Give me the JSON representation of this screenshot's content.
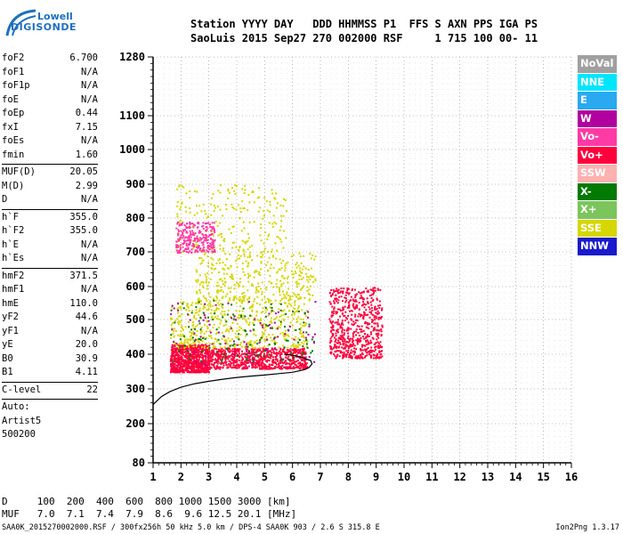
{
  "logo": {
    "line1": "Lowell",
    "line2": "DIGISONDE"
  },
  "header": {
    "line1": "Station YYYY DAY   DDD HHMMSS P1  FFS S AXN PPS IGA PS",
    "line2": "SaoLuis 2015 Sep27 270 002000 RSF     1 715 100 00- 11"
  },
  "params": {
    "g1": [
      [
        "foF2",
        "6.700"
      ],
      [
        "foF1",
        "N/A"
      ],
      [
        "foF1p",
        "N/A"
      ],
      [
        "foE",
        "N/A"
      ],
      [
        "foEp",
        "0.44"
      ],
      [
        "fxI",
        "7.15"
      ],
      [
        "foEs",
        "N/A"
      ],
      [
        "fmin",
        "1.60"
      ]
    ],
    "g2": [
      [
        "MUF(D)",
        "20.05"
      ],
      [
        "M(D)",
        "2.99"
      ],
      [
        "D",
        "N/A"
      ]
    ],
    "g3": [
      [
        "h`F",
        "355.0"
      ],
      [
        "h`F2",
        "355.0"
      ],
      [
        "h`E",
        "N/A"
      ],
      [
        "h`Es",
        "N/A"
      ]
    ],
    "g4": [
      [
        "hmF2",
        "371.5"
      ],
      [
        "hmF1",
        "N/A"
      ],
      [
        "hmE",
        "110.0"
      ],
      [
        "yF2",
        "44.6"
      ],
      [
        "yF1",
        "N/A"
      ],
      [
        "yE",
        "20.0"
      ],
      [
        "B0",
        "30.9"
      ],
      [
        "B1",
        "4.11"
      ]
    ],
    "g5": [
      [
        "C-level",
        "22"
      ]
    ],
    "auto": [
      "Auto:",
      "Artist5",
      "500200"
    ]
  },
  "legend": [
    {
      "label": "NoVal",
      "color": "#a0a0a0"
    },
    {
      "label": "NNE",
      "color": "#00e5ff"
    },
    {
      "label": "E",
      "color": "#2aa9f0"
    },
    {
      "label": "W",
      "color": "#b0009e"
    },
    {
      "label": "Vo-",
      "color": "#ff3aa5"
    },
    {
      "label": "Vo+",
      "color": "#ff003c"
    },
    {
      "label": "SSW",
      "color": "#ffb0b0"
    },
    {
      "label": "X-",
      "color": "#007a00"
    },
    {
      "label": "X+",
      "color": "#7cc45c"
    },
    {
      "label": "SSE",
      "color": "#d6d600"
    },
    {
      "label": "NNW",
      "color": "#1a1acc"
    }
  ],
  "bottom": {
    "line1": "D     100  200  400  600  800 1000 1500 3000 [km]",
    "line2": "MUF   7.0  7.1  7.4  7.9  8.6  9.6 12.5 20.1 [MHz]"
  },
  "footer": {
    "left": "SAA0K_2015270002000.RSF / 300fx256h 50 kHz 5.0 km / DPS-4 SAA0K 903 / 2.6 S 315.8 E",
    "right": "Ion2Png 1.3.17"
  },
  "chart_data": {
    "type": "scatter",
    "x_ticks": [
      1,
      2,
      3,
      4,
      5,
      6,
      7,
      8,
      9,
      10,
      11,
      12,
      13,
      14,
      15,
      16
    ],
    "y_ticks": [
      80,
      200,
      300,
      400,
      500,
      600,
      700,
      800,
      900,
      1000,
      1100,
      1280
    ],
    "xlim": [
      1,
      16
    ],
    "ylim": [
      80,
      1280
    ],
    "grid": true,
    "clusters": [
      {
        "x": [
          1.6,
          3.0
        ],
        "y": [
          350,
          430
        ],
        "color": "#ff003c",
        "density": 0.9
      },
      {
        "x": [
          3.0,
          6.5
        ],
        "y": [
          360,
          420
        ],
        "color": "#ff003c",
        "density": 0.8
      },
      {
        "x": [
          1.6,
          6.5
        ],
        "y": [
          420,
          560
        ],
        "color": "#d6d600",
        "density": 0.6
      },
      {
        "x": [
          2.5,
          6.8
        ],
        "y": [
          560,
          700
        ],
        "color": "#d6d600",
        "density": 0.4
      },
      {
        "x": [
          1.8,
          5.8
        ],
        "y": [
          700,
          900
        ],
        "color": "#d6d600",
        "density": 0.25
      },
      {
        "x": [
          1.8,
          3.2
        ],
        "y": [
          700,
          790
        ],
        "color": "#ff3aa5",
        "density": 0.3
      },
      {
        "x": [
          7.3,
          9.2
        ],
        "y": [
          390,
          600
        ],
        "color": "#ff003c",
        "density": 0.7
      },
      {
        "x": [
          1.6,
          6.8
        ],
        "y": [
          380,
          560
        ],
        "color": "#007a00",
        "density": 0.15
      },
      {
        "x": [
          1.6,
          6.8
        ],
        "y": [
          360,
          560
        ],
        "color": "#b0009e",
        "density": 0.1
      }
    ],
    "trace": {
      "x": [
        1.0,
        1.3,
        1.6,
        2.0,
        2.5,
        3.0,
        3.5,
        4.0,
        4.5,
        5.0,
        5.5,
        6.0,
        6.4,
        6.6,
        6.7,
        6.65,
        6.5,
        6.3,
        6.0,
        5.7
      ],
      "y": [
        255,
        278,
        292,
        305,
        315,
        322,
        328,
        333,
        337,
        340,
        344,
        348,
        355,
        362,
        372,
        382,
        386,
        392,
        397,
        400
      ]
    }
  }
}
